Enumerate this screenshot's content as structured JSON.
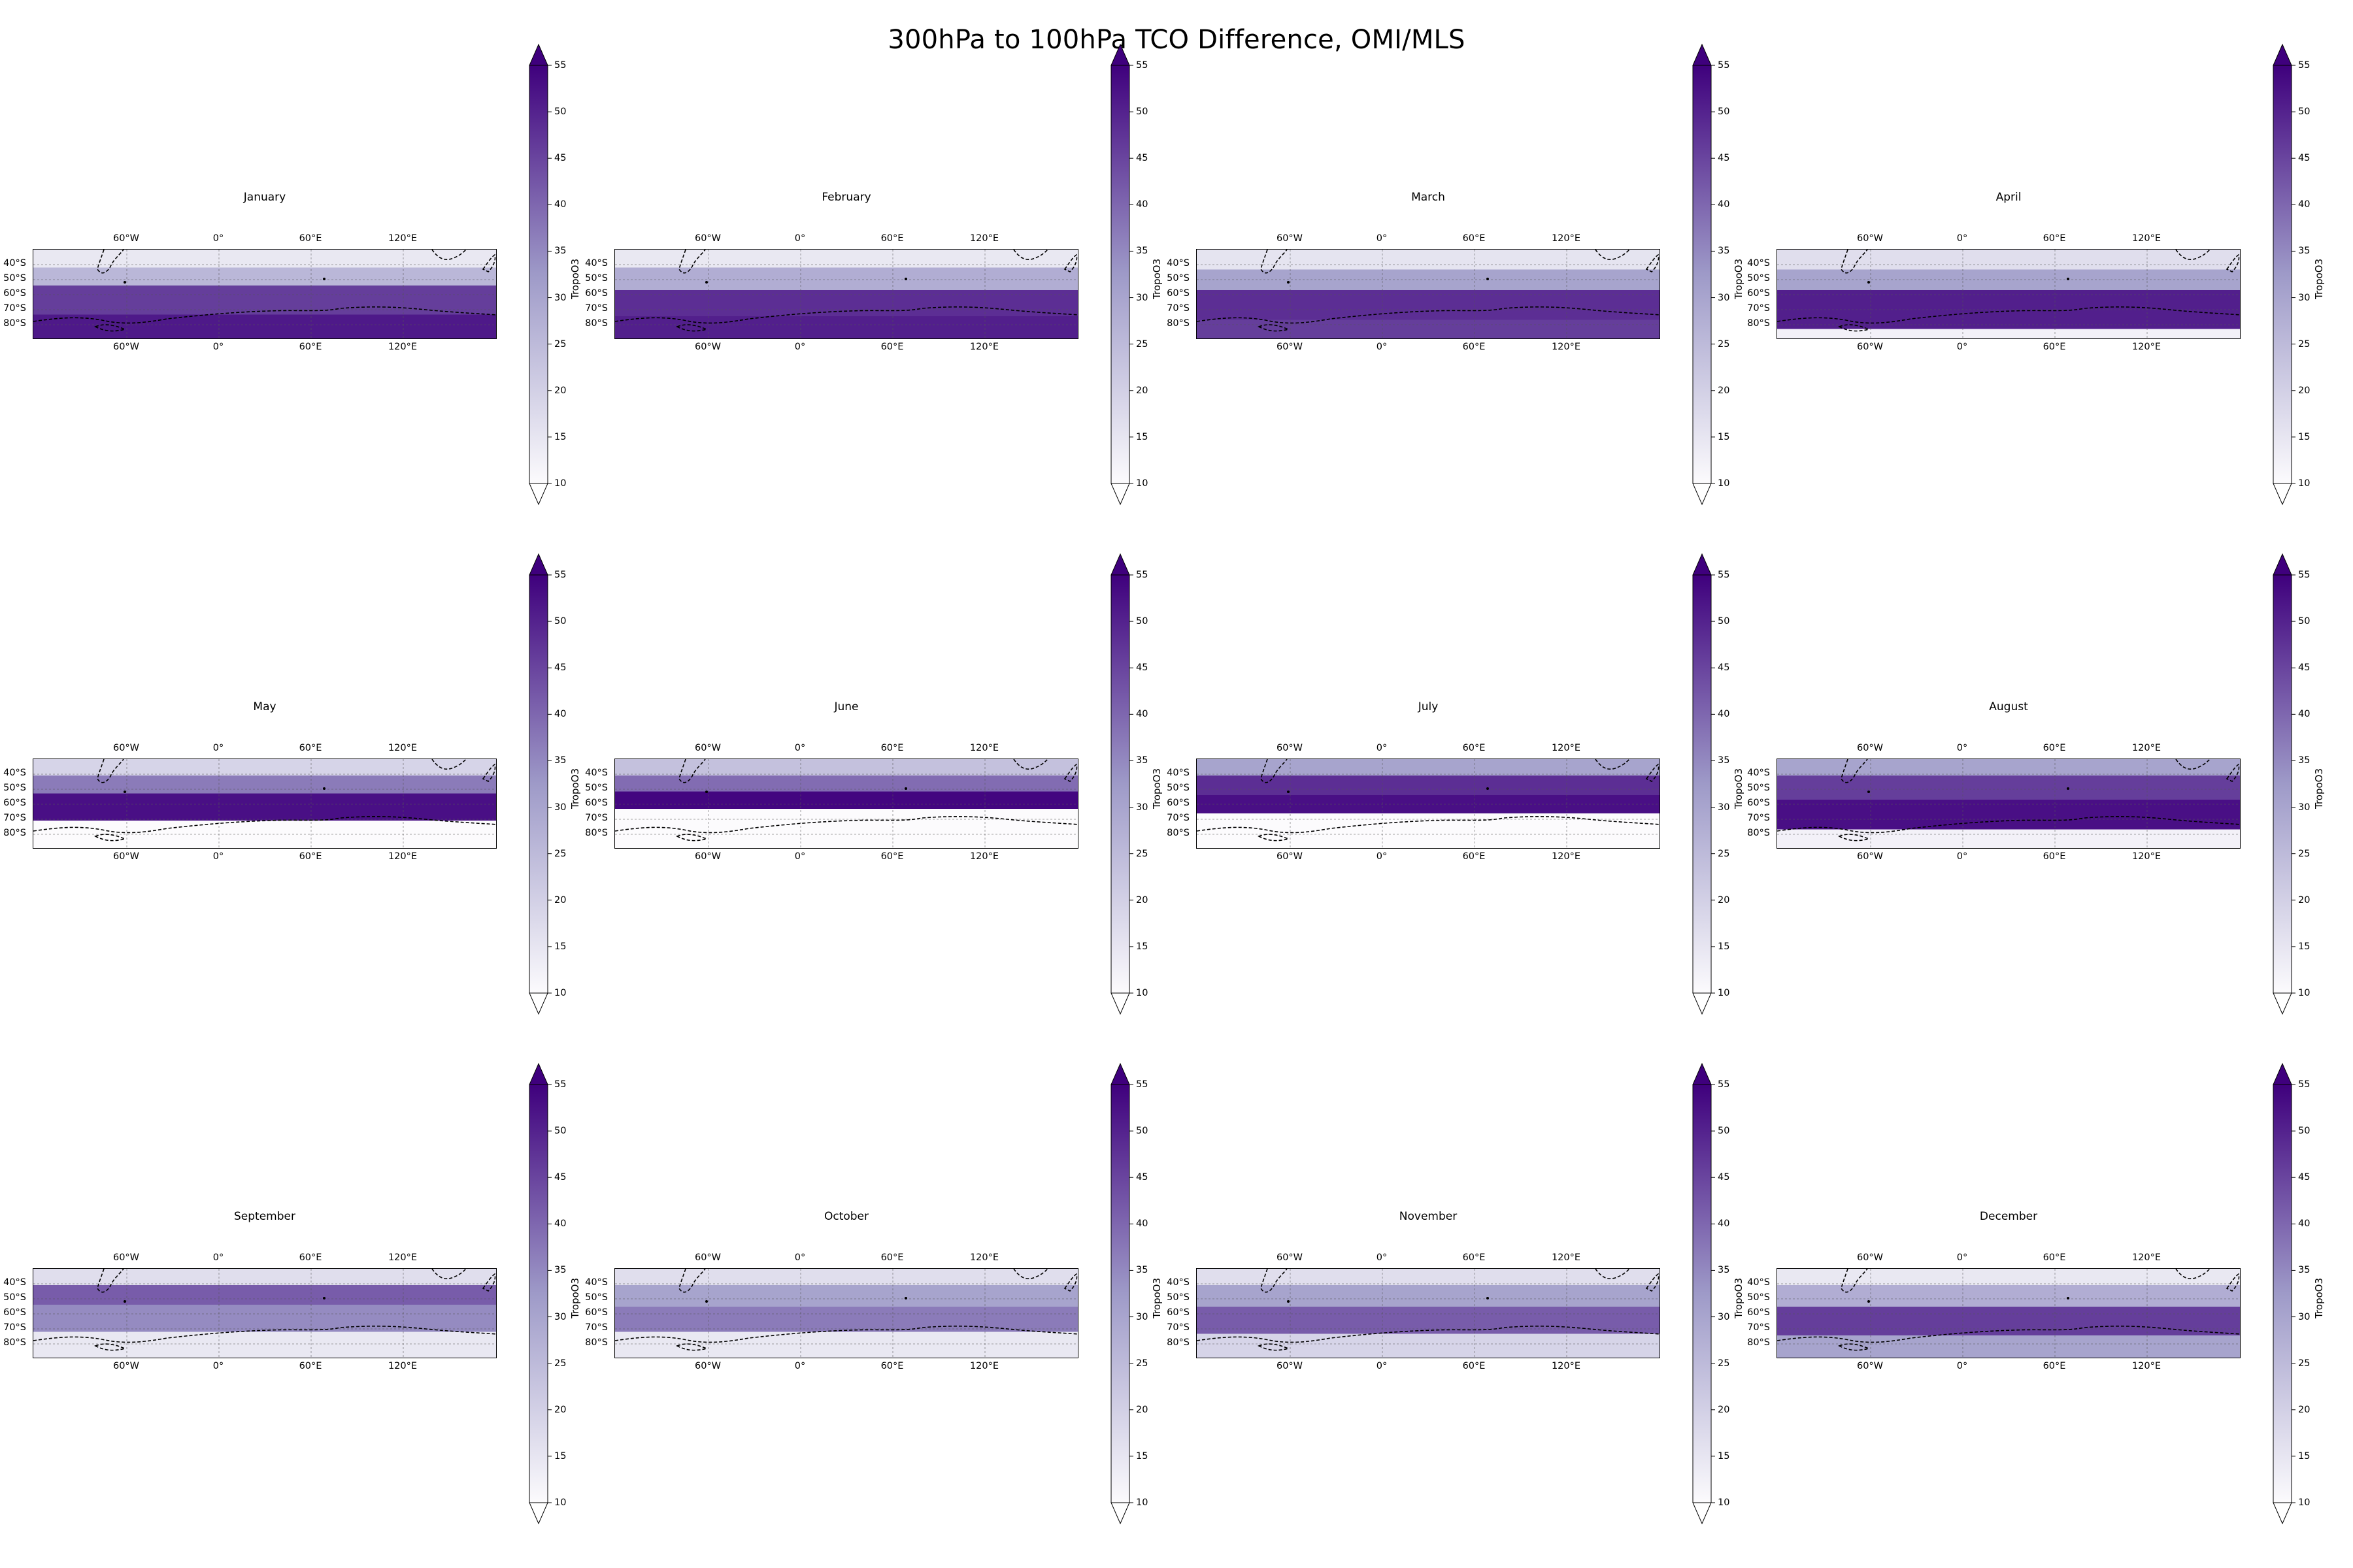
{
  "suptitle": "300hPa to 100hPa TCO Difference, OMI/MLS",
  "colormap": {
    "name": "Purples",
    "low": "#fcfbfd",
    "mid": "#9e9ac8",
    "high": "#3f007d"
  },
  "colorbar": {
    "label": "TropoO3",
    "ticks": [
      "55",
      "50",
      "45",
      "40",
      "35",
      "30",
      "25",
      "20",
      "15",
      "10"
    ],
    "range": [
      10,
      55
    ],
    "extend": "both"
  },
  "map": {
    "projection": "PlateCarree",
    "extent_lon": [
      -180,
      180
    ],
    "extent_lat": [
      -90,
      -30
    ],
    "coastlines": "dashed",
    "gridlines": "dotted",
    "lon_ticks": [
      "60°W",
      "0°",
      "60°E",
      "120°E"
    ],
    "lat_ticks": [
      "40°S",
      "50°S",
      "60°S",
      "70°S",
      "80°S"
    ]
  },
  "panels": [
    {
      "month": "January"
    },
    {
      "month": "February"
    },
    {
      "month": "March"
    },
    {
      "month": "April"
    },
    {
      "month": "May"
    },
    {
      "month": "June"
    },
    {
      "month": "July"
    },
    {
      "month": "August"
    },
    {
      "month": "September"
    },
    {
      "month": "October"
    },
    {
      "month": "November"
    },
    {
      "month": "December"
    }
  ]
}
